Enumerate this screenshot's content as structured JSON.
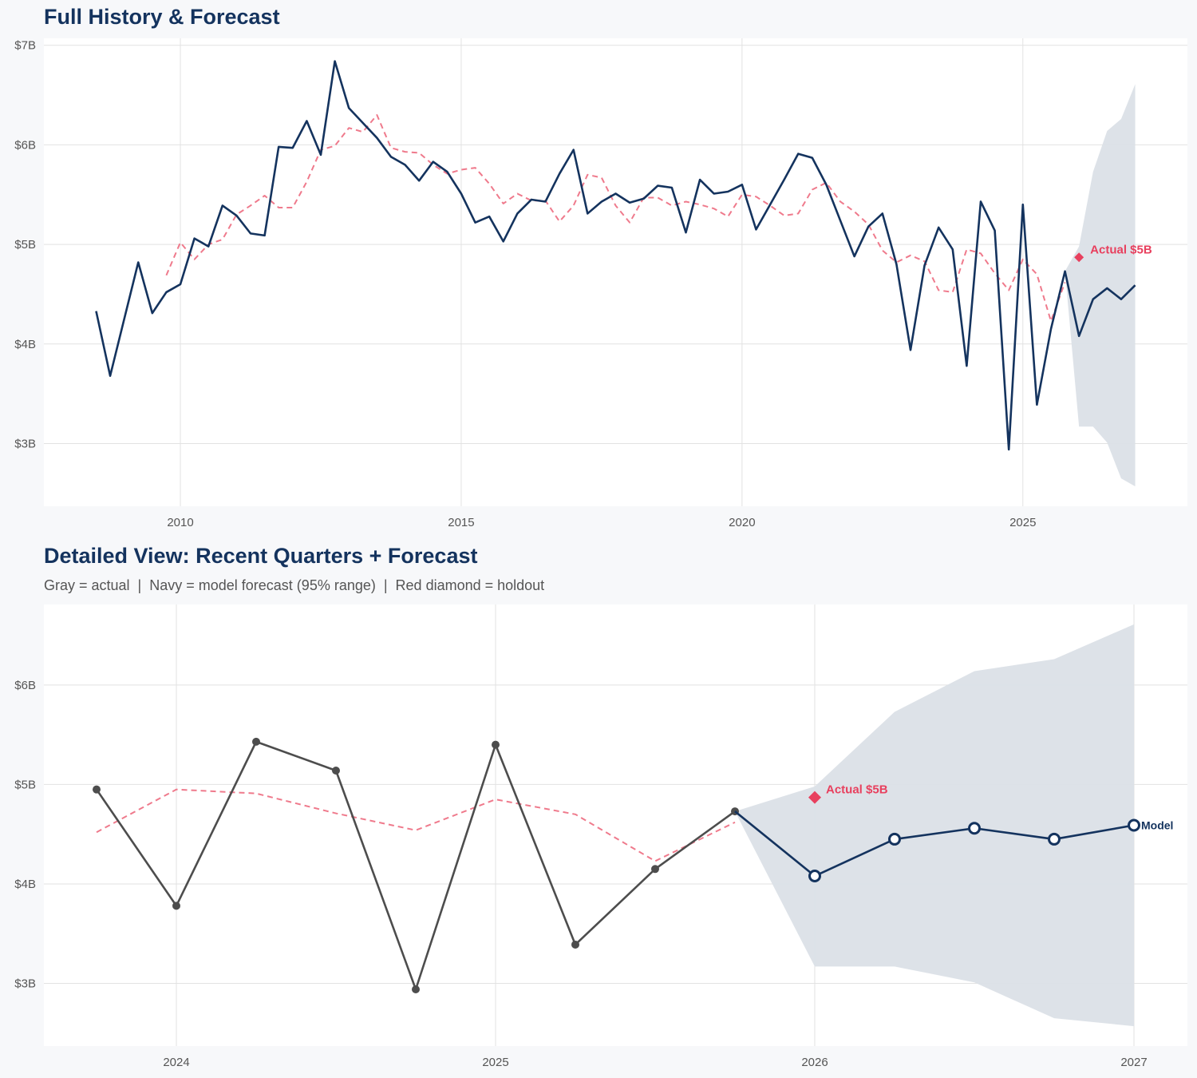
{
  "colors": {
    "navy": "#14335e",
    "gray_actual": "#4d4d4d",
    "red": "#e8405e",
    "red_dashed": "#ef7a8c",
    "band": "#dbe0e7",
    "grid": "#e2e2e2"
  },
  "chart_data": [
    {
      "type": "line",
      "title": "Full History & Forecast",
      "xlim": [
        2007.57,
        2027.93
      ],
      "ylim": [
        2.37,
        7.07
      ],
      "xticks": [
        2010,
        2015,
        2020,
        2025
      ],
      "xtick_labels": [
        "2010",
        "2015",
        "2020",
        "2025"
      ],
      "yticks": [
        3,
        4,
        5,
        6,
        7
      ],
      "ytick_labels": [
        "$3B",
        "$4B",
        "$5B",
        "$6B",
        "$7B"
      ],
      "grid": true,
      "band": {
        "x": [
          2025.75,
          2026.0,
          2026.25,
          2026.5,
          2026.75,
          2027.0
        ],
        "upper": [
          4.73,
          4.98,
          5.73,
          6.14,
          6.26,
          6.61
        ],
        "lower": [
          4.73,
          3.17,
          3.17,
          3.01,
          2.65,
          2.57
        ]
      },
      "series": [
        {
          "style": "dashed",
          "color": "#ef7a8c",
          "x": [
            2009.75,
            2010,
            2010.25,
            2010.5,
            2010.75,
            2011,
            2011.25,
            2011.5,
            2011.75,
            2012,
            2012.25,
            2012.5,
            2012.75,
            2013,
            2013.25,
            2013.5,
            2013.75,
            2014,
            2014.25,
            2014.5,
            2014.75,
            2015,
            2015.25,
            2015.5,
            2015.75,
            2016,
            2016.25,
            2016.5,
            2016.75,
            2017,
            2017.25,
            2017.5,
            2017.75,
            2018,
            2018.25,
            2018.5,
            2018.75,
            2019,
            2019.25,
            2019.5,
            2019.75,
            2020,
            2020.25,
            2020.5,
            2020.75,
            2021,
            2021.25,
            2021.5,
            2021.75,
            2022,
            2022.25,
            2022.5,
            2022.75,
            2023,
            2023.25,
            2023.5,
            2023.75,
            2024,
            2024.25,
            2024.5,
            2024.75,
            2025,
            2025.25,
            2025.5,
            2025.75
          ],
          "values": [
            4.69,
            5.02,
            4.85,
            5.0,
            5.05,
            5.3,
            5.39,
            5.49,
            5.37,
            5.37,
            5.63,
            5.95,
            5.99,
            6.17,
            6.13,
            6.3,
            5.97,
            5.93,
            5.92,
            5.8,
            5.71,
            5.75,
            5.77,
            5.61,
            5.41,
            5.51,
            5.44,
            5.44,
            5.23,
            5.39,
            5.7,
            5.67,
            5.39,
            5.22,
            5.47,
            5.47,
            5.39,
            5.43,
            5.4,
            5.36,
            5.28,
            5.5,
            5.48,
            5.39,
            5.29,
            5.31,
            5.55,
            5.62,
            5.43,
            5.33,
            5.2,
            4.94,
            4.82,
            4.89,
            4.83,
            4.54,
            4.52,
            4.95,
            4.91,
            4.71,
            4.54,
            4.85,
            4.7,
            4.23,
            4.62
          ]
        },
        {
          "style": "solid",
          "color": "#14335e",
          "x": [
            2008.5,
            2008.75,
            2009,
            2009.25,
            2009.5,
            2009.75,
            2010,
            2010.25,
            2010.5,
            2010.75,
            2011,
            2011.25,
            2011.5,
            2011.75,
            2012,
            2012.25,
            2012.5,
            2012.75,
            2013,
            2013.25,
            2013.5,
            2013.75,
            2014,
            2014.25,
            2014.5,
            2014.75,
            2015,
            2015.25,
            2015.5,
            2015.75,
            2016,
            2016.25,
            2016.5,
            2016.75,
            2017,
            2017.25,
            2017.5,
            2017.75,
            2018,
            2018.25,
            2018.5,
            2018.75,
            2019,
            2019.25,
            2019.5,
            2019.75,
            2020,
            2020.25,
            2020.5,
            2020.75,
            2021,
            2021.25,
            2021.5,
            2021.75,
            2022,
            2022.25,
            2022.5,
            2022.75,
            2023,
            2023.25,
            2023.5,
            2023.75,
            2024,
            2024.25,
            2024.5,
            2024.75,
            2025,
            2025.25,
            2025.5,
            2025.75,
            2026,
            2026.25,
            2026.5,
            2026.75,
            2027
          ],
          "values": [
            4.33,
            3.68,
            4.25,
            4.82,
            4.31,
            4.52,
            4.6,
            5.06,
            4.98,
            5.39,
            5.29,
            5.11,
            5.09,
            5.98,
            5.97,
            6.24,
            5.9,
            6.84,
            6.37,
            6.22,
            6.07,
            5.88,
            5.8,
            5.64,
            5.83,
            5.73,
            5.51,
            5.22,
            5.28,
            5.03,
            5.31,
            5.45,
            5.43,
            5.71,
            5.95,
            5.31,
            5.43,
            5.51,
            5.42,
            5.46,
            5.59,
            5.57,
            5.12,
            5.65,
            5.51,
            5.53,
            5.6,
            5.15,
            5.4,
            5.65,
            5.91,
            5.87,
            5.6,
            5.24,
            4.88,
            5.18,
            5.31,
            4.8,
            3.94,
            4.79,
            5.17,
            4.95,
            3.78,
            5.43,
            5.14,
            2.94,
            5.4,
            3.39,
            4.15,
            4.73,
            4.08,
            4.45,
            4.56,
            4.45,
            4.59
          ]
        }
      ],
      "holdout": {
        "x": 2026.0,
        "value": 4.87,
        "label": "Actual $5B"
      }
    },
    {
      "type": "line",
      "title": "Detailed View: Recent Quarters + Forecast",
      "subtitle": "Gray = actual  |  Navy = model forecast (95% range)  |  Red diamond = holdout",
      "xlim": [
        2023.585,
        2027.1675
      ],
      "ylim": [
        2.37,
        6.81
      ],
      "xticks": [
        2024,
        2025,
        2026,
        2027
      ],
      "xtick_labels": [
        "2024",
        "2025",
        "2026",
        "2027"
      ],
      "yticks": [
        3,
        4,
        5,
        6
      ],
      "ytick_labels": [
        "$3B",
        "$4B",
        "$5B",
        "$6B"
      ],
      "grid": true,
      "band": {
        "x": [
          2025.75,
          2026.0,
          2026.25,
          2026.5,
          2026.75,
          2027.0
        ],
        "upper": [
          4.73,
          4.98,
          5.73,
          6.14,
          6.26,
          6.61
        ],
        "lower": [
          4.73,
          3.17,
          3.17,
          3.01,
          2.65,
          2.57
        ]
      },
      "series": [
        {
          "style": "dashed",
          "color": "#ef7a8c",
          "x": [
            2023.75,
            2024,
            2024.25,
            2024.5,
            2024.75,
            2025,
            2025.25,
            2025.5,
            2025.75
          ],
          "values": [
            4.52,
            4.95,
            4.91,
            4.71,
            4.54,
            4.85,
            4.7,
            4.23,
            4.62
          ]
        },
        {
          "style": "solid",
          "color": "#4d4d4d",
          "markers": "filled",
          "x": [
            2023.75,
            2024,
            2024.25,
            2024.5,
            2024.75,
            2025,
            2025.25,
            2025.5,
            2025.75
          ],
          "values": [
            4.95,
            3.78,
            5.43,
            5.14,
            2.94,
            5.4,
            3.39,
            4.15,
            4.73
          ]
        },
        {
          "style": "solid",
          "color": "#14335e",
          "markers": "hollow",
          "name": "Model",
          "x": [
            2025.75,
            2026,
            2026.25,
            2026.5,
            2026.75,
            2027
          ],
          "values": [
            4.73,
            4.08,
            4.45,
            4.56,
            4.45,
            4.59
          ]
        }
      ],
      "holdout": {
        "x": 2026.0,
        "value": 4.87,
        "label": "Actual $5B"
      }
    }
  ]
}
